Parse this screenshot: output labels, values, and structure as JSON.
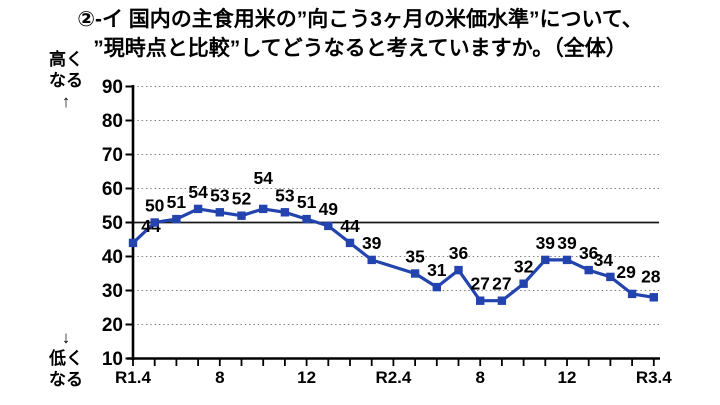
{
  "title": {
    "line1": "②-イ 国内の主食用米の”向こう3ヶ月の米価水準”について、",
    "line2": "”現時点と比較”してどうなると考えていますか。（全体）"
  },
  "y_axis": {
    "high_label_lines": [
      "高く",
      "なる",
      "↑"
    ],
    "low_label_lines": [
      "↓",
      "低く",
      "なる"
    ],
    "tick_labels": [
      "90",
      "80",
      "70",
      "60",
      "50",
      "40",
      "30",
      "20",
      "10"
    ]
  },
  "x_axis": {
    "tick_labels": [
      "R1.4",
      "8",
      "12",
      "R2.4",
      "8",
      "12",
      "R3.4"
    ]
  },
  "chart_data": {
    "type": "line",
    "title": "②-イ 国内の主食用米の”向こう3ヶ月の米価水準”について、”現時点と比較”してどうなると考えていますか。（全体）",
    "ylim": [
      10,
      90
    ],
    "y_tick_step": 10,
    "reference_line_y": 50,
    "grid": "dotted-horizontal",
    "legend": "none",
    "x_total_slots": 25,
    "x_tick_slots": [
      {
        "slot": 0,
        "label": "R1.4"
      },
      {
        "slot": 4,
        "label": "8"
      },
      {
        "slot": 8,
        "label": "12"
      },
      {
        "slot": 12,
        "label": "R2.4"
      },
      {
        "slot": 16,
        "label": "8"
      },
      {
        "slot": 20,
        "label": "12"
      },
      {
        "slot": 24,
        "label": "R3.4"
      }
    ],
    "series": [
      {
        "name": "全体",
        "color": "#2343ae",
        "marker": "square",
        "data_labels_shown": true,
        "values": [
          44,
          50,
          51,
          54,
          53,
          52,
          54,
          53,
          51,
          49,
          44,
          39,
          35,
          31,
          36,
          27,
          27,
          32,
          39,
          39,
          36,
          34,
          29,
          28
        ],
        "slots": [
          0,
          1,
          2,
          3,
          4,
          5,
          6,
          7,
          8,
          9,
          10,
          11,
          13,
          14,
          15,
          16,
          17,
          18,
          19,
          20,
          21,
          22,
          23,
          24
        ]
      }
    ],
    "label_offsets": {
      "0": [
        18,
        0
      ],
      "6": [
        0,
        -14
      ],
      "21": [
        -7,
        0
      ],
      "22": [
        -6,
        -5
      ],
      "23": [
        -3,
        -4
      ]
    },
    "colors": {
      "axis": "#000000",
      "gridline": "#808080",
      "reference_line": "#1a1a1a",
      "data_label": "#000000"
    }
  }
}
